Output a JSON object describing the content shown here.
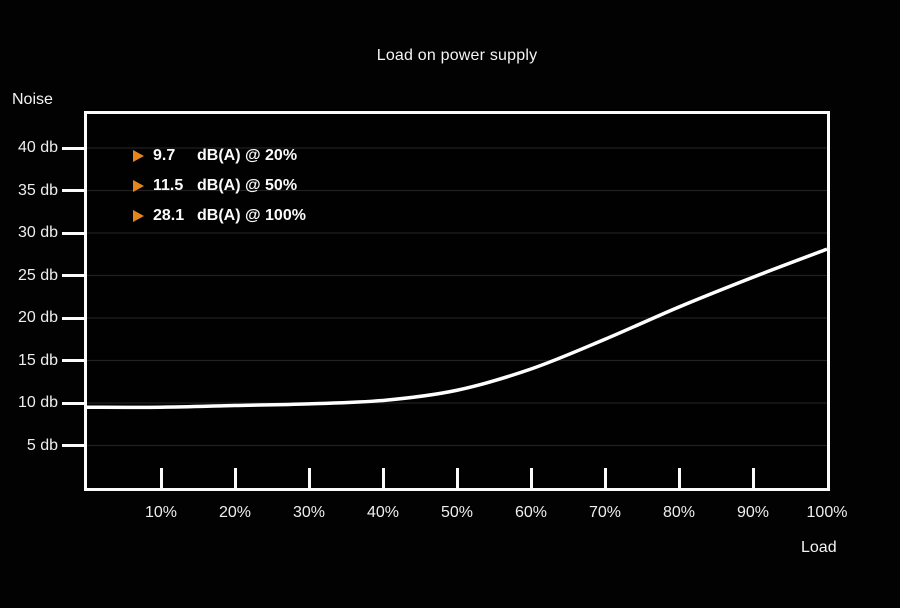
{
  "header": {
    "title": "Load on power supply"
  },
  "axes": {
    "y_label": "Noise",
    "x_label": "Load"
  },
  "colors": {
    "background": "#020202",
    "line": "#ffffff",
    "frame": "#fbfbfb",
    "grid": "#212121",
    "text": "#f2f2f2",
    "accent_orange": "#e5861d"
  },
  "chart_data": {
    "type": "line",
    "title": "Load on power supply",
    "xlabel": "Load",
    "ylabel": "Noise",
    "x": [
      0,
      10,
      20,
      30,
      40,
      50,
      60,
      70,
      80,
      90,
      100
    ],
    "values": [
      9.5,
      9.5,
      9.7,
      9.9,
      10.3,
      11.5,
      14.0,
      17.5,
      21.3,
      24.8,
      28.1
    ],
    "xlim": [
      0,
      100
    ],
    "ylim": [
      0,
      44
    ],
    "grid": true,
    "legend_position": "top-left",
    "x_ticks": [
      {
        "value": 10,
        "label": "10%"
      },
      {
        "value": 20,
        "label": "20%"
      },
      {
        "value": 30,
        "label": "30%"
      },
      {
        "value": 40,
        "label": "40%"
      },
      {
        "value": 50,
        "label": "50%"
      },
      {
        "value": 60,
        "label": "60%"
      },
      {
        "value": 70,
        "label": "70%"
      },
      {
        "value": 80,
        "label": "80%"
      },
      {
        "value": 90,
        "label": "90%"
      },
      {
        "value": 100,
        "label": "100%"
      }
    ],
    "y_ticks": [
      {
        "value": 5,
        "label": "5 db"
      },
      {
        "value": 10,
        "label": "10 db"
      },
      {
        "value": 15,
        "label": "15 db"
      },
      {
        "value": 20,
        "label": "20 db"
      },
      {
        "value": 25,
        "label": "25 db"
      },
      {
        "value": 30,
        "label": "30 db"
      },
      {
        "value": 35,
        "label": "35 db"
      },
      {
        "value": 40,
        "label": "40 db"
      }
    ],
    "annotations": [
      {
        "value": "9.7",
        "label": "dB(A) @ 20%"
      },
      {
        "value": "11.5",
        "label": "dB(A) @ 50%"
      },
      {
        "value": "28.1",
        "label": "dB(A) @ 100%"
      }
    ]
  }
}
